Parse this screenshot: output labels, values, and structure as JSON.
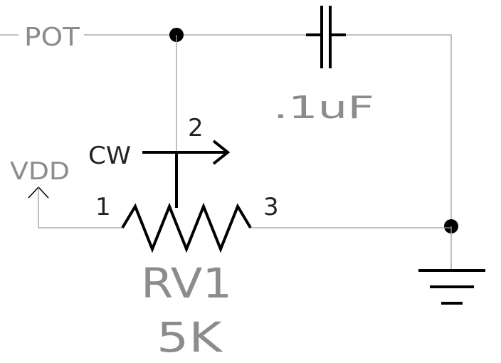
{
  "net_label": "POT",
  "capacitor": {
    "value": ".1uF"
  },
  "potentiometer": {
    "ref": "RV1",
    "value": "5K",
    "wiper_dir": "CW",
    "pins": {
      "p1": "1",
      "p2": "2",
      "p3": "3"
    }
  },
  "power": {
    "vdd": "VDD"
  },
  "colors": {
    "wire": "#9e9e9e",
    "symbol": "#000000",
    "label": "#8c8c8c"
  }
}
